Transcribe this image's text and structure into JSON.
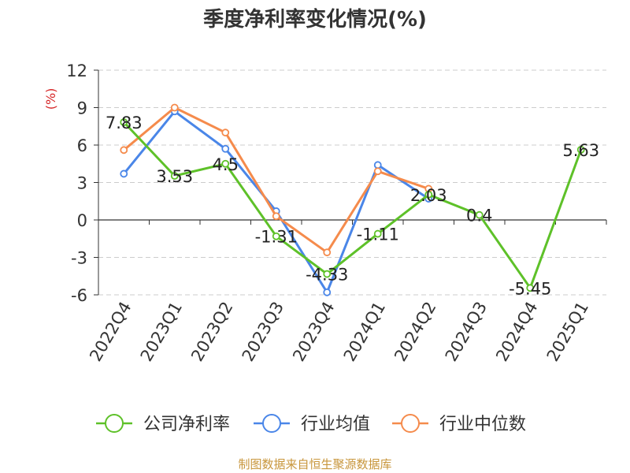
{
  "chart_data": {
    "type": "line",
    "title": "季度净利率变化情况(%)",
    "ylabel": "(%)",
    "xlabel": "",
    "categories": [
      "2022Q4",
      "2023Q1",
      "2023Q2",
      "2023Q3",
      "2023Q4",
      "2024Q1",
      "2024Q2",
      "2024Q3",
      "2024Q4",
      "2025Q1"
    ],
    "ylim": [
      -6,
      12
    ],
    "yticks": [
      "12",
      "9",
      "6",
      "3",
      "0",
      "-3",
      "-6"
    ],
    "grid": true,
    "legend_position": "bottom",
    "series": [
      {
        "name": "公司净利率",
        "color": "#5ec129",
        "values": [
          7.83,
          3.53,
          4.5,
          -1.31,
          -4.33,
          -1.11,
          2.03,
          0.4,
          -5.45,
          5.63
        ],
        "labels": [
          "7.83",
          "3.53",
          "4.5",
          "-1.31",
          "-4.33",
          "-1.11",
          "2.03",
          "0.4",
          "-5.45",
          "5.63"
        ]
      },
      {
        "name": "行业均值",
        "color": "#4a86e8",
        "values": [
          3.7,
          8.7,
          5.7,
          0.7,
          -5.8,
          4.4,
          1.7,
          null,
          null,
          null
        ]
      },
      {
        "name": "行业中位数",
        "color": "#f58b4c",
        "values": [
          5.6,
          9.0,
          7.0,
          0.3,
          -2.6,
          3.9,
          2.5,
          null,
          null,
          null
        ]
      }
    ]
  },
  "footer": {
    "source": "制图数据来自恒生聚源数据库"
  }
}
